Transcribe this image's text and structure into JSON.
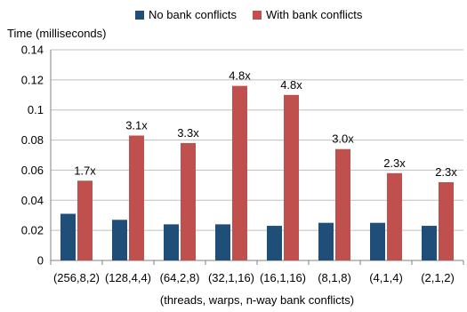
{
  "chart_data": {
    "type": "bar",
    "ylabel": "Time (milliseconds)",
    "xlabel": "(threads, warps, n-way bank conflicts)",
    "ylim": [
      0,
      0.14
    ],
    "yticks": [
      "0",
      "0.02",
      "0.04",
      "0.06",
      "0.08",
      "0.1",
      "0.12",
      "0.14"
    ],
    "categories": [
      "(256,8,2)",
      "(128,4,4)",
      "(64,2,8)",
      "(32,1,16)",
      "(16,1,16)",
      "(8,1,8)",
      "(4,1,4)",
      "(2,1,2)"
    ],
    "series": [
      {
        "name": "No bank conflicts",
        "color": "#1f4e79",
        "values": [
          0.031,
          0.027,
          0.024,
          0.024,
          0.023,
          0.025,
          0.025,
          0.023
        ]
      },
      {
        "name": "With bank conflicts",
        "color": "#c0504d",
        "values": [
          0.053,
          0.083,
          0.078,
          0.116,
          0.11,
          0.074,
          0.058,
          0.052
        ]
      }
    ],
    "annotations": [
      "1.7x",
      "3.1x",
      "3.3x",
      "4.8x",
      "4.8x",
      "3.0x",
      "2.3x",
      "2.3x"
    ],
    "legend_position": "top"
  }
}
